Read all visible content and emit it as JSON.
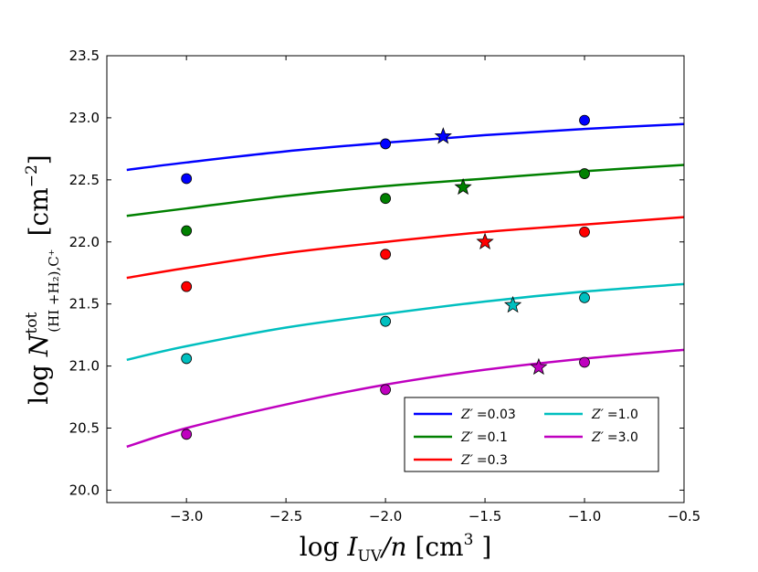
{
  "chart_data": {
    "type": "line",
    "title": "",
    "xlabel": "log I_UV/n [cm^3 ]",
    "ylabel": "log N^tot_(HI+H2),C+ [cm^-2]",
    "xlabel_parts": {
      "prefix": "log ",
      "var": "I",
      "sub": "UV",
      "mid": "/n ",
      "unit": "[cm",
      "sup": "3",
      "close": " ]"
    },
    "ylabel_parts": {
      "prefix": "log ",
      "var": "N",
      "sup": "tot",
      "sub": "(HI +H₂),C⁺",
      "unit": "[cm",
      "unit_sup": "−2",
      "close": "]"
    },
    "xlim": [
      -3.4,
      -0.5
    ],
    "ylim": [
      19.9,
      23.5
    ],
    "xticks": [
      -3.0,
      -2.5,
      -2.0,
      -1.5,
      -1.0,
      -0.5
    ],
    "xtick_labels": [
      "−3.0",
      "−2.5",
      "−2.0",
      "−1.5",
      "−1.0",
      "−0.5"
    ],
    "yticks": [
      20.0,
      20.5,
      21.0,
      21.5,
      22.0,
      22.5,
      23.0,
      23.5
    ],
    "ytick_labels": [
      "20.0",
      "20.5",
      "21.0",
      "21.5",
      "22.0",
      "22.5",
      "23.0",
      "23.5"
    ],
    "grid": false,
    "legend_position": "lower-right",
    "legend_columns": 2,
    "series": [
      {
        "name": "Z' =0.03",
        "legend_var": "Z′",
        "legend_value": "=0.03",
        "color": "#0000ff",
        "curve_x": [
          -3.3,
          -3.0,
          -2.5,
          -2.0,
          -1.5,
          -1.0,
          -0.5
        ],
        "curve_y": [
          22.58,
          22.64,
          22.73,
          22.8,
          22.86,
          22.91,
          22.95
        ],
        "circles": {
          "x": [
            -3.0,
            -2.0,
            -1.0
          ],
          "y": [
            22.51,
            22.79,
            22.98
          ]
        },
        "star": {
          "x": -1.71,
          "y": 22.85
        }
      },
      {
        "name": "Z' =0.1",
        "legend_var": "Z′",
        "legend_value": "=0.1",
        "color": "#008000",
        "curve_x": [
          -3.3,
          -3.0,
          -2.5,
          -2.0,
          -1.5,
          -1.0,
          -0.5
        ],
        "curve_y": [
          22.21,
          22.27,
          22.37,
          22.45,
          22.51,
          22.57,
          22.62
        ],
        "circles": {
          "x": [
            -3.0,
            -2.0,
            -1.0
          ],
          "y": [
            22.09,
            22.35,
            22.55
          ]
        },
        "star": {
          "x": -1.61,
          "y": 22.44
        }
      },
      {
        "name": "Z' =0.3",
        "legend_var": "Z′",
        "legend_value": "=0.3",
        "color": "#ff0000",
        "curve_x": [
          -3.3,
          -3.0,
          -2.5,
          -2.0,
          -1.5,
          -1.0,
          -0.5
        ],
        "curve_y": [
          21.71,
          21.79,
          21.91,
          22.0,
          22.08,
          22.14,
          22.2
        ],
        "circles": {
          "x": [
            -3.0,
            -2.0,
            -1.0
          ],
          "y": [
            21.64,
            21.9,
            22.08
          ]
        },
        "star": {
          "x": -1.5,
          "y": 22.0
        }
      },
      {
        "name": "Z' =1.0",
        "legend_var": "Z′",
        "legend_value": "=1.0",
        "color": "#00bfbf",
        "curve_x": [
          -3.3,
          -3.0,
          -2.5,
          -2.0,
          -1.5,
          -1.0,
          -0.5
        ],
        "curve_y": [
          21.05,
          21.16,
          21.31,
          21.42,
          21.52,
          21.6,
          21.66
        ],
        "circles": {
          "x": [
            -3.0,
            -2.0,
            -1.0
          ],
          "y": [
            21.06,
            21.36,
            21.55
          ]
        },
        "star": {
          "x": -1.36,
          "y": 21.49
        }
      },
      {
        "name": "Z' =3.0",
        "legend_var": "Z′",
        "legend_value": "=3.0",
        "color": "#bf00bf",
        "curve_x": [
          -3.3,
          -3.0,
          -2.5,
          -2.0,
          -1.5,
          -1.0,
          -0.5
        ],
        "curve_y": [
          20.35,
          20.5,
          20.69,
          20.85,
          20.97,
          21.06,
          21.13
        ],
        "circles": {
          "x": [
            -3.0,
            -2.0,
            -1.0
          ],
          "y": [
            20.45,
            20.81,
            21.03
          ]
        },
        "star": {
          "x": -1.23,
          "y": 20.99
        }
      }
    ]
  }
}
